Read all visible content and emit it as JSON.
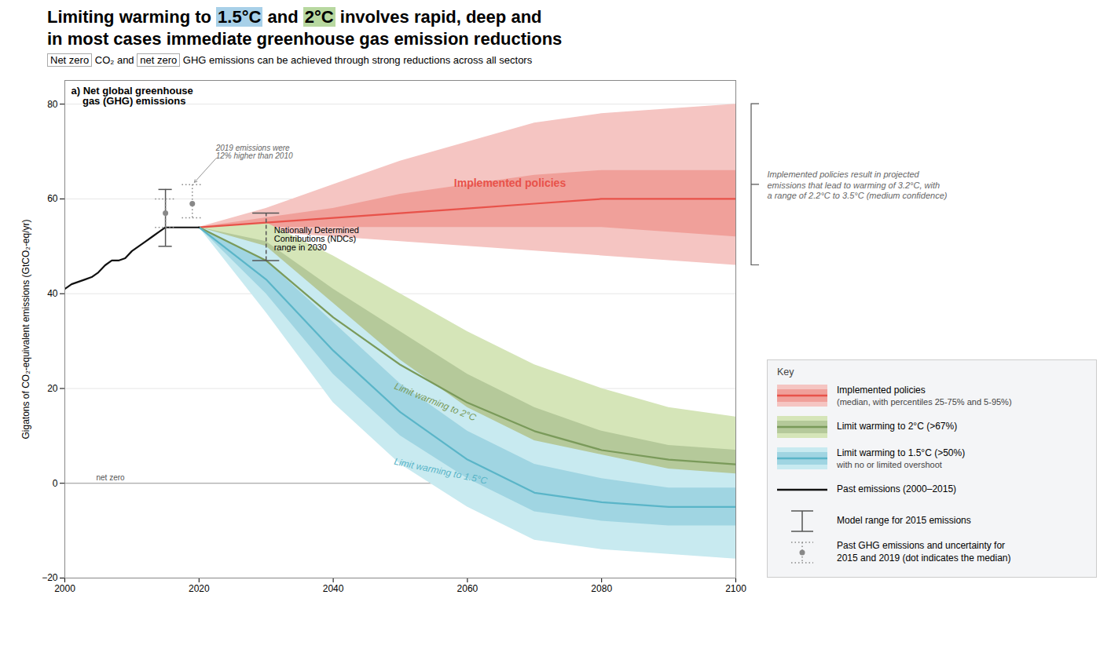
{
  "chart_data": {
    "type": "line",
    "title_segments": [
      {
        "text": "Limiting warming to "
      },
      {
        "text": "1.5°C",
        "highlight": "#a8d0e8"
      },
      {
        "text": " and "
      },
      {
        "text": "2°C",
        "highlight": "#b8d8a0"
      },
      {
        "text": " involves rapid, deep and"
      }
    ],
    "title_line2": "in most cases immediate greenhouse gas emission reductions",
    "subtitle_segments": [
      {
        "text": "Net zero",
        "boxed": true
      },
      {
        "text": " CO₂ and "
      },
      {
        "text": "net zero",
        "boxed": true
      },
      {
        "text": " GHG emissions can be achieved through strong reductions across all sectors"
      }
    ],
    "panel_label": "a) Net global greenhouse\n    gas (GHG) emissions",
    "ylabel": "Gigatons of CO₂-equivalent emissions (GtCO₂-eq/yr)",
    "xlim": [
      2000,
      2100
    ],
    "ylim": [
      -20,
      85
    ],
    "xticks": [
      2000,
      2020,
      2040,
      2060,
      2080,
      2100
    ],
    "yticks": [
      -20,
      0,
      20,
      40,
      60,
      80
    ],
    "grid": true,
    "legend": "lower right",
    "legend_title": "Key",
    "series": [
      {
        "name": "Implemented policies",
        "chart_label": "Implemented policies",
        "note": "(median, with percentiles 25-75% and 5-95%)",
        "x": [
          2020,
          2030,
          2040,
          2050,
          2060,
          2070,
          2080,
          2090,
          2100
        ],
        "values": [
          54,
          55,
          56,
          57,
          58,
          59,
          60,
          60,
          60
        ],
        "p25": [
          54,
          54,
          54,
          54,
          54,
          54,
          54,
          53,
          52
        ],
        "p75": [
          54,
          56,
          58,
          61,
          63,
          65,
          66,
          66,
          66
        ],
        "p05": [
          54,
          53,
          52,
          51,
          50,
          49,
          48,
          47,
          46
        ],
        "p95": [
          54,
          58,
          63,
          68,
          72,
          76,
          78,
          79,
          80
        ],
        "color": "#e8524a",
        "color_p25_p75": "#f0a09a",
        "color_p05_p95": "#f5c5c2"
      },
      {
        "name": "Limit warming to 2°C (>67%)",
        "chart_label": "Limit warming to 2°C",
        "x": [
          2020,
          2030,
          2040,
          2050,
          2060,
          2070,
          2080,
          2090,
          2100
        ],
        "values": [
          54,
          47,
          35,
          25,
          17,
          11,
          7,
          5,
          4
        ],
        "p25": [
          54,
          44,
          30,
          20,
          13,
          8,
          4,
          2,
          1
        ],
        "p75": [
          54,
          51,
          41,
          32,
          23,
          16,
          11,
          8,
          7
        ],
        "p05": [
          54,
          40,
          24,
          14,
          7,
          2,
          -1,
          -3,
          -4
        ],
        "p95": [
          54,
          55,
          48,
          40,
          32,
          25,
          20,
          16,
          14
        ],
        "color": "#7a9a5a",
        "color_p25_p75": "#b5c99a",
        "color_p05_p95": "#d5e5b8"
      },
      {
        "name": "Limit warming to 1.5°C (>50%)",
        "chart_label": "Limit warming to 1.5°C",
        "note": "with no or limited overshoot",
        "x": [
          2020,
          2030,
          2040,
          2050,
          2060,
          2070,
          2080,
          2090,
          2100
        ],
        "values": [
          54,
          43,
          28,
          15,
          5,
          -2,
          -4,
          -5,
          -5
        ],
        "p25": [
          54,
          40,
          23,
          10,
          1,
          -6,
          -8,
          -9,
          -9
        ],
        "p75": [
          54,
          47,
          34,
          21,
          11,
          4,
          1,
          -1,
          -1
        ],
        "p05": [
          54,
          36,
          17,
          4,
          -5,
          -12,
          -14,
          -15,
          -16
        ],
        "p95": [
          54,
          50,
          38,
          26,
          16,
          9,
          6,
          3,
          2
        ],
        "color": "#5ab5c8",
        "color_p25_p75": "#a0d5e2",
        "color_p05_p95": "#c8eaf0"
      },
      {
        "name": "Past emissions (2000–2015)",
        "x": [
          2000,
          2001,
          2002,
          2003,
          2004,
          2005,
          2006,
          2007,
          2008,
          2009,
          2010,
          2011,
          2012,
          2013,
          2014,
          2015
        ],
        "values": [
          41.0,
          42.0,
          42.5,
          43.0,
          43.5,
          44.5,
          46.0,
          47.0,
          47.0,
          47.5,
          49.0,
          50.0,
          51.0,
          52.0,
          53.0,
          54.0
        ],
        "color": "#111111",
        "bridge": {
          "x": [
            2015,
            2020
          ],
          "values": [
            54,
            54
          ]
        }
      }
    ],
    "net_zero": {
      "value": 0,
      "label": "net zero"
    },
    "ndc": {
      "x": 2030,
      "low": 47,
      "high": 57,
      "label": "Nationally Determined\nContributions (NDCs)\nrange in 2030"
    },
    "model_range": {
      "x": 2015,
      "low": 50,
      "high": 62,
      "name": "Model range for 2015 emissions"
    },
    "past_ghg": {
      "x": [
        2015,
        2019
      ],
      "median": [
        57,
        59
      ],
      "low": [
        54,
        56
      ],
      "high": [
        60,
        63
      ],
      "name": "Past GHG emissions and uncertainty for\n2015 and 2019 (dot indicates the median)"
    },
    "annotation": "2019 emissions were\n12% higher than 2010",
    "policy_note": "Implemented policies result in projected\nemissions that lead to warming of 3.2°C, with\na range of 2.2°C to 3.5°C (medium confidence)"
  }
}
